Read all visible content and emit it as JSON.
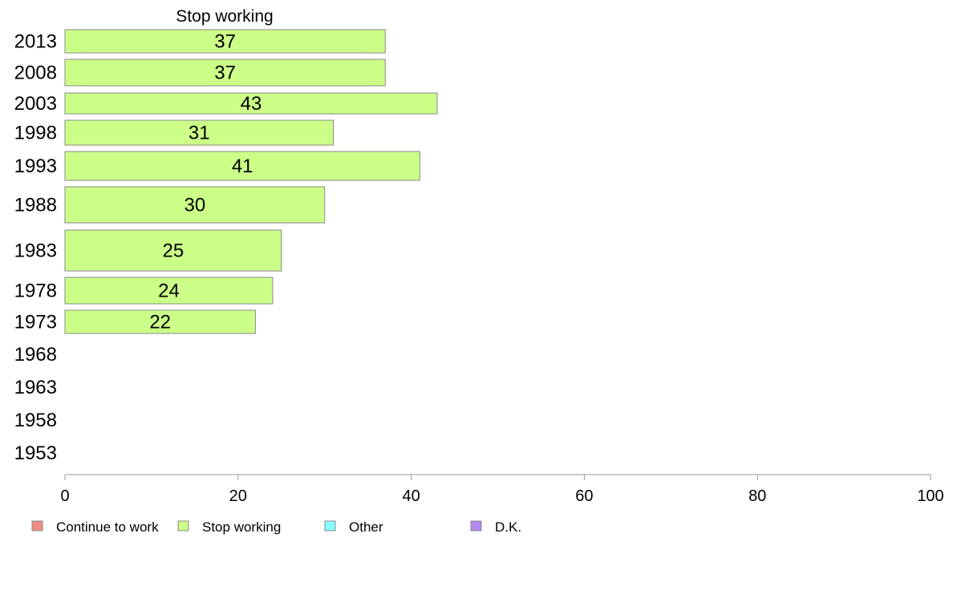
{
  "chart_data": {
    "type": "bar",
    "orientation": "horizontal",
    "title": "Stop working",
    "categories": [
      "2013",
      "2008",
      "2003",
      "1998",
      "1993",
      "1988",
      "1983",
      "1978",
      "1973",
      "1968",
      "1963",
      "1958",
      "1953"
    ],
    "series": [
      {
        "name": "Stop working",
        "values": [
          37,
          37,
          43,
          31,
          41,
          30,
          25,
          24,
          22,
          null,
          null,
          null,
          null
        ]
      }
    ],
    "xlim": [
      0,
      100
    ],
    "x_ticks": [
      0,
      20,
      40,
      60,
      80,
      100
    ],
    "grid": false,
    "legend": {
      "placement": "bottom-left",
      "entries": [
        {
          "label": "Continue to work",
          "color": "#f28b84"
        },
        {
          "label": "Stop working",
          "color": "#ccff88"
        },
        {
          "label": "Other",
          "color": "#88ffff"
        },
        {
          "label": "D.K.",
          "color": "#b388f2"
        }
      ]
    },
    "bar_color": "#ccff88",
    "bar_stroke": "#8a8a8a"
  }
}
